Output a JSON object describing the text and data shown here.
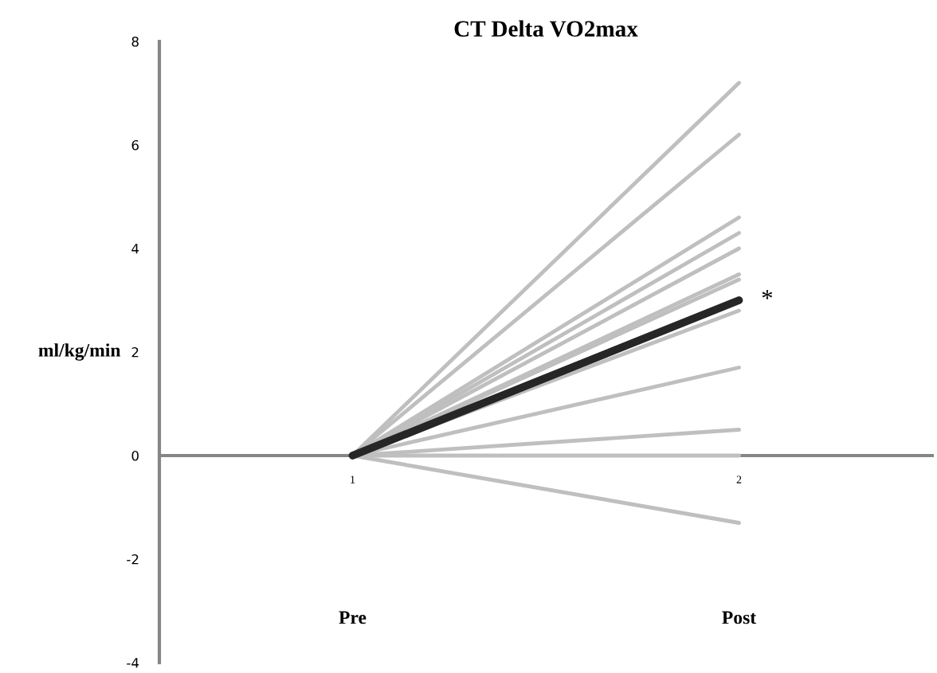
{
  "chart_data": {
    "type": "line",
    "title": "CT Delta VO2max",
    "ylabel": "ml/kg/min",
    "x": [
      1,
      2
    ],
    "xlim": [
      0.5,
      2.5
    ],
    "xticks": [
      1,
      2
    ],
    "ylim": [
      -4,
      8
    ],
    "yticks": [
      -4,
      -2,
      0,
      2,
      4,
      6,
      8
    ],
    "grid": false,
    "marker": "none",
    "line_style": "solid",
    "series": [
      {
        "color": "#bfbfbf",
        "values": [
          0,
          7.2
        ]
      },
      {
        "color": "#bfbfbf",
        "values": [
          0,
          6.2
        ]
      },
      {
        "color": "#bfbfbf",
        "values": [
          0,
          4.6
        ]
      },
      {
        "color": "#bfbfbf",
        "values": [
          0,
          4.3
        ]
      },
      {
        "color": "#bfbfbf",
        "values": [
          0,
          4.0
        ]
      },
      {
        "color": "#bfbfbf",
        "values": [
          0,
          3.5
        ]
      },
      {
        "color": "#bfbfbf",
        "values": [
          0,
          3.4
        ]
      },
      {
        "color": "#bfbfbf",
        "values": [
          0,
          2.8
        ]
      },
      {
        "color": "#bfbfbf",
        "values": [
          0,
          1.7
        ]
      },
      {
        "color": "#bfbfbf",
        "values": [
          0,
          0.5
        ]
      },
      {
        "color": "#bfbfbf",
        "values": [
          0,
          0
        ]
      },
      {
        "color": "#bfbfbf",
        "values": [
          0,
          -1.3
        ]
      },
      {
        "color": "#262626",
        "values": [
          0,
          3.0
        ]
      }
    ],
    "annotations": [
      {
        "text": "*",
        "x": 2,
        "y": 3.0
      },
      "Pre",
      "Post"
    ]
  }
}
